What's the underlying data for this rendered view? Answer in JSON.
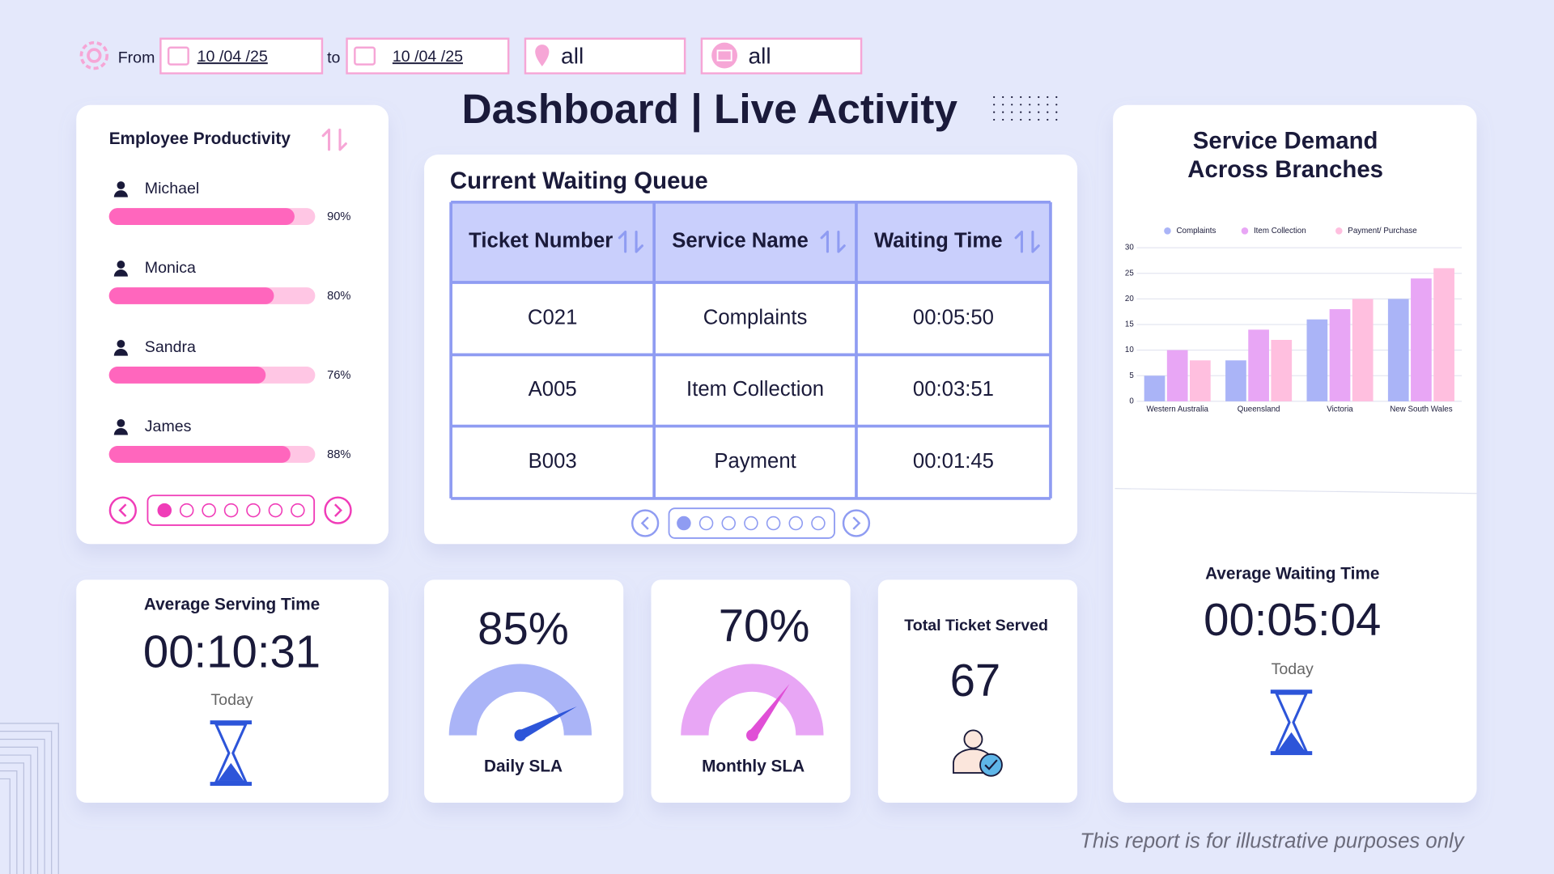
{
  "filters": {
    "from_label": "From",
    "from_date": "10 /04 /25",
    "to_label": "to",
    "to_date": "10 /04 /25",
    "location": "all",
    "channel": "all"
  },
  "header": {
    "title": "Dashboard | Live Activity"
  },
  "productivity": {
    "title": "Employee Productivity",
    "employees": [
      "Michael",
      "Monica",
      "Sandra",
      "James"
    ],
    "values": [
      90,
      80,
      76,
      88
    ],
    "value_labels": [
      "90%",
      "80%",
      "76%",
      "88%"
    ],
    "xlim": [
      0,
      100
    ]
  },
  "queue": {
    "title": "Current Waiting Queue",
    "columns": [
      "Ticket Number",
      "Service Name",
      "Waiting Time"
    ],
    "rows": [
      [
        "C021",
        "Complaints",
        "00:05:50"
      ],
      [
        "A005",
        "Item Collection",
        "00:03:51"
      ],
      [
        "B003",
        "Payment",
        "00:01:45"
      ]
    ]
  },
  "average_serving": {
    "title": "Average Serving Time",
    "value": "00:10:31",
    "period": "Today"
  },
  "daily_sla": {
    "label": "Daily SLA",
    "value": 85,
    "value_label": "85%",
    "range": [
      0,
      100
    ]
  },
  "monthly_sla": {
    "label": "Monthly SLA",
    "value": 70,
    "value_label": "70%",
    "range": [
      0,
      100
    ]
  },
  "total_served": {
    "title": "Total Ticket Served",
    "value": 67
  },
  "average_waiting": {
    "title": "Average Waiting Time",
    "value": "00:05:04",
    "period": "Today"
  },
  "chart_data": {
    "type": "bar",
    "title": "Service Demand Across Branches",
    "categories": [
      "Western Australia",
      "Queensland",
      "Victoria",
      "New South Wales"
    ],
    "series": [
      {
        "name": "Complaints",
        "color": "#aab4f7",
        "values": [
          5,
          8,
          16,
          20
        ]
      },
      {
        "name": "Item Collection",
        "color": "#e8a6f5",
        "values": [
          10,
          14,
          18,
          24
        ]
      },
      {
        "name": "Payment/ Purchase",
        "color": "#ffbfdf",
        "values": [
          8,
          12,
          20,
          26
        ]
      }
    ],
    "ylim": [
      0,
      30
    ],
    "yticks": [
      0,
      5,
      10,
      15,
      20,
      25,
      30
    ],
    "grid": true,
    "legend": "top"
  },
  "footer": {
    "note": "This report is for illustrative purposes only"
  }
}
